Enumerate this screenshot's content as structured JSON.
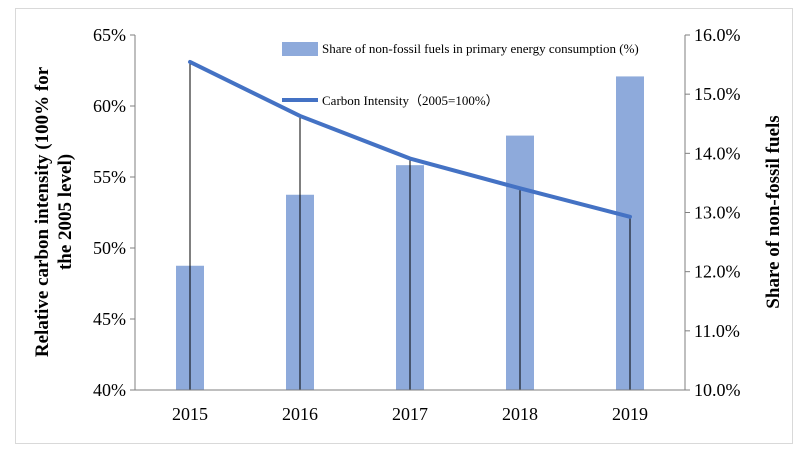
{
  "chart_data": {
    "type": "bar+line",
    "categories": [
      "2015",
      "2016",
      "2017",
      "2018",
      "2019"
    ],
    "series": [
      {
        "name": "Share of non-fossil fuels in primary energy consumption (%)",
        "type": "bar",
        "axis": "right",
        "values": [
          12.1,
          13.3,
          13.8,
          14.3,
          15.3
        ],
        "color": "#8eaadb"
      },
      {
        "name": "Carbon Intensity（2005=100%）",
        "type": "line",
        "axis": "left",
        "values": [
          63.1,
          59.3,
          56.3,
          54.2,
          52.2
        ],
        "color": "#4472c4"
      }
    ],
    "y_left": {
      "label_line1": "Relative carbon intensity (100% for",
      "label_line2": "the 2005 level)",
      "ticks": [
        "40%",
        "45%",
        "50%",
        "55%",
        "60%",
        "65%"
      ],
      "min": 40,
      "max": 65
    },
    "y_right": {
      "label": "Share of non-fossil fuels",
      "ticks": [
        "10.0%",
        "11.0%",
        "12.0%",
        "13.0%",
        "14.0%",
        "15.0%",
        "16.0%"
      ],
      "min": 10,
      "max": 16
    },
    "legend_position": "top-right",
    "grid": false,
    "drop_lines": true
  }
}
